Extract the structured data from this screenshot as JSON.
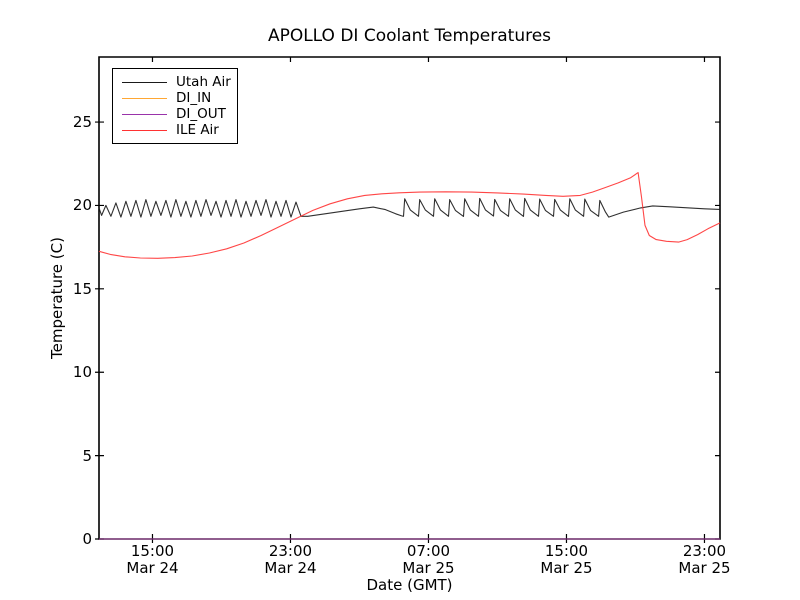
{
  "figure": {
    "background": "#ffffff",
    "text_color": "#000000"
  },
  "chart_data": {
    "type": "line",
    "title": "APOLLO DI Coolant Temperatures",
    "xlabel": "Date (GMT)",
    "ylabel": "Temperature (C)",
    "x_unit": "hours since Mar 24 00:00 GMT",
    "xlim": [
      11.9,
      47.9
    ],
    "ylim": [
      0,
      28.9
    ],
    "grid": false,
    "legend_position": "upper left",
    "x_ticks": [
      {
        "hour": 15,
        "time": "15:00",
        "date": "Mar 24"
      },
      {
        "hour": 23,
        "time": "23:00",
        "date": "Mar 24"
      },
      {
        "hour": 31,
        "time": "07:00",
        "date": "Mar 25"
      },
      {
        "hour": 39,
        "time": "15:00",
        "date": "Mar 25"
      },
      {
        "hour": 47,
        "time": "23:00",
        "date": "Mar 25"
      }
    ],
    "y_ticks": [
      {
        "value": 0,
        "label": "0"
      },
      {
        "value": 5,
        "label": "5"
      },
      {
        "value": 10,
        "label": "10"
      },
      {
        "value": 15,
        "label": "15"
      },
      {
        "value": 20,
        "label": "20"
      },
      {
        "value": 25,
        "label": "25"
      }
    ],
    "series": [
      {
        "name": "Utah Air",
        "color": "#1a1a1a",
        "points": [
          [
            11.9,
            19.85
          ],
          [
            12.05,
            19.4
          ],
          [
            12.3,
            20.0
          ],
          [
            12.59,
            19.35
          ],
          [
            12.88,
            20.15
          ],
          [
            13.17,
            19.3
          ],
          [
            13.46,
            20.25
          ],
          [
            13.75,
            19.35
          ],
          [
            14.04,
            20.3
          ],
          [
            14.33,
            19.3
          ],
          [
            14.62,
            20.35
          ],
          [
            14.91,
            19.35
          ],
          [
            15.2,
            20.25
          ],
          [
            15.49,
            19.4
          ],
          [
            15.78,
            20.3
          ],
          [
            16.07,
            19.3
          ],
          [
            16.36,
            20.35
          ],
          [
            16.65,
            19.35
          ],
          [
            16.94,
            20.25
          ],
          [
            17.23,
            19.3
          ],
          [
            17.52,
            20.3
          ],
          [
            17.81,
            19.35
          ],
          [
            18.1,
            20.35
          ],
          [
            18.39,
            19.4
          ],
          [
            18.68,
            20.25
          ],
          [
            18.97,
            19.3
          ],
          [
            19.26,
            20.3
          ],
          [
            19.55,
            19.35
          ],
          [
            19.84,
            20.35
          ],
          [
            20.13,
            19.3
          ],
          [
            20.42,
            20.25
          ],
          [
            20.71,
            19.35
          ],
          [
            21.0,
            20.3
          ],
          [
            21.29,
            19.4
          ],
          [
            21.58,
            20.35
          ],
          [
            21.87,
            19.3
          ],
          [
            22.16,
            20.25
          ],
          [
            22.45,
            19.35
          ],
          [
            22.74,
            20.3
          ],
          [
            23.03,
            19.3
          ],
          [
            23.32,
            20.2
          ],
          [
            23.61,
            19.35
          ],
          [
            24.0,
            19.35
          ],
          [
            25.0,
            19.5
          ],
          [
            26.0,
            19.65
          ],
          [
            27.0,
            19.8
          ],
          [
            27.8,
            19.9
          ],
          [
            28.5,
            19.75
          ],
          [
            29.1,
            19.5
          ],
          [
            29.45,
            19.37
          ],
          [
            29.55,
            19.35
          ],
          [
            29.62,
            20.4
          ],
          [
            29.95,
            19.72
          ],
          [
            30.42,
            19.35
          ],
          [
            30.49,
            20.35
          ],
          [
            30.82,
            19.72
          ],
          [
            31.29,
            19.35
          ],
          [
            31.36,
            20.4
          ],
          [
            31.69,
            19.73
          ],
          [
            32.16,
            19.35
          ],
          [
            32.23,
            20.35
          ],
          [
            32.56,
            19.7
          ],
          [
            33.03,
            19.34
          ],
          [
            33.1,
            20.4
          ],
          [
            33.43,
            19.72
          ],
          [
            33.9,
            19.35
          ],
          [
            33.97,
            20.42
          ],
          [
            34.3,
            19.73
          ],
          [
            34.77,
            19.36
          ],
          [
            34.84,
            20.36
          ],
          [
            35.17,
            19.7
          ],
          [
            35.64,
            19.35
          ],
          [
            35.71,
            20.4
          ],
          [
            36.04,
            19.72
          ],
          [
            36.51,
            19.34
          ],
          [
            36.58,
            20.42
          ],
          [
            36.91,
            19.72
          ],
          [
            37.38,
            19.35
          ],
          [
            37.45,
            20.38
          ],
          [
            37.78,
            19.7
          ],
          [
            38.25,
            19.35
          ],
          [
            38.32,
            20.36
          ],
          [
            38.65,
            19.72
          ],
          [
            39.12,
            19.34
          ],
          [
            39.19,
            20.4
          ],
          [
            39.52,
            19.72
          ],
          [
            39.99,
            19.35
          ],
          [
            40.06,
            20.38
          ],
          [
            40.39,
            19.7
          ],
          [
            40.86,
            19.35
          ],
          [
            40.93,
            20.3
          ],
          [
            41.26,
            19.6
          ],
          [
            41.45,
            19.3
          ],
          [
            42.3,
            19.6
          ],
          [
            43.3,
            19.85
          ],
          [
            44.0,
            19.97
          ],
          [
            45.0,
            19.92
          ],
          [
            46.0,
            19.86
          ],
          [
            47.0,
            19.8
          ],
          [
            47.9,
            19.76
          ]
        ]
      },
      {
        "name": "DI_IN",
        "color": "#ffa733",
        "points": [
          [
            11.9,
            0
          ],
          [
            47.9,
            0
          ]
        ]
      },
      {
        "name": "DI_OUT",
        "color": "#9933aa",
        "points": [
          [
            11.9,
            0
          ],
          [
            47.9,
            0
          ]
        ]
      },
      {
        "name": "ILE Air",
        "color": "#ff3232",
        "points": [
          [
            11.9,
            17.25
          ],
          [
            12.6,
            17.05
          ],
          [
            13.4,
            16.92
          ],
          [
            14.3,
            16.85
          ],
          [
            15.3,
            16.83
          ],
          [
            16.3,
            16.87
          ],
          [
            17.3,
            16.97
          ],
          [
            18.3,
            17.15
          ],
          [
            19.3,
            17.4
          ],
          [
            20.3,
            17.75
          ],
          [
            21.3,
            18.2
          ],
          [
            22.3,
            18.7
          ],
          [
            23.3,
            19.2
          ],
          [
            24.3,
            19.7
          ],
          [
            25.3,
            20.1
          ],
          [
            26.3,
            20.4
          ],
          [
            27.3,
            20.6
          ],
          [
            28.3,
            20.7
          ],
          [
            29.3,
            20.76
          ],
          [
            30.5,
            20.8
          ],
          [
            32.0,
            20.82
          ],
          [
            33.5,
            20.8
          ],
          [
            35.0,
            20.75
          ],
          [
            36.5,
            20.68
          ],
          [
            37.8,
            20.6
          ],
          [
            38.8,
            20.55
          ],
          [
            39.8,
            20.6
          ],
          [
            40.5,
            20.8
          ],
          [
            41.2,
            21.05
          ],
          [
            42.0,
            21.35
          ],
          [
            42.7,
            21.65
          ],
          [
            43.15,
            21.97
          ],
          [
            43.35,
            20.5
          ],
          [
            43.55,
            18.8
          ],
          [
            43.8,
            18.2
          ],
          [
            44.2,
            17.95
          ],
          [
            44.8,
            17.85
          ],
          [
            45.5,
            17.8
          ],
          [
            46.0,
            17.95
          ],
          [
            46.6,
            18.25
          ],
          [
            47.2,
            18.6
          ],
          [
            47.9,
            18.95
          ]
        ]
      }
    ]
  }
}
